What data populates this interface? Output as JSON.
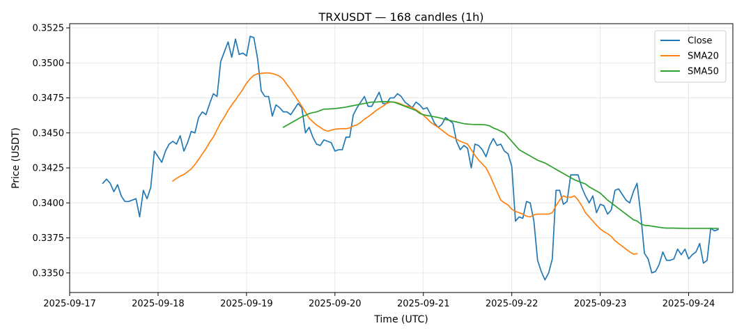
{
  "chart_data": {
    "type": "line",
    "title": "TRXUSDT — 168 candles (1h)",
    "xlabel": "Time (UTC)",
    "ylabel": "Price (USDT)",
    "x_range": [
      "2025-09-17T00:00",
      "2025-09-24T12:00"
    ],
    "x_start": "2025-09-17T09:00",
    "x_interval_hours": 1,
    "x_ticks": [
      "2025-09-17",
      "2025-09-18",
      "2025-09-19",
      "2025-09-20",
      "2025-09-21",
      "2025-09-22",
      "2025-09-23",
      "2025-09-24"
    ],
    "ylim": [
      0.3336,
      0.3528
    ],
    "y_ticks": [
      0.335,
      0.3375,
      0.34,
      0.3425,
      0.345,
      0.3475,
      0.35,
      0.3525
    ],
    "y_tick_labels": [
      "0.3350",
      "0.3375",
      "0.3400",
      "0.3425",
      "0.3450",
      "0.3475",
      "0.3500",
      "0.3525"
    ],
    "grid": true,
    "legend": "top-right",
    "series": [
      {
        "name": "Close",
        "color": "#1f77b4",
        "start_index": 0,
        "values": [
          0.3414,
          0.3417,
          0.3414,
          0.3408,
          0.3413,
          0.3405,
          0.3401,
          0.3401,
          0.3402,
          0.3403,
          0.339,
          0.3409,
          0.3403,
          0.3411,
          0.3437,
          0.3433,
          0.3429,
          0.3437,
          0.3442,
          0.3444,
          0.3442,
          0.3448,
          0.3437,
          0.3443,
          0.3451,
          0.345,
          0.3461,
          0.3465,
          0.3463,
          0.3471,
          0.3478,
          0.3476,
          0.3501,
          0.3508,
          0.3515,
          0.3504,
          0.3517,
          0.3506,
          0.3507,
          0.3505,
          0.3519,
          0.3518,
          0.3503,
          0.348,
          0.3476,
          0.3476,
          0.3462,
          0.347,
          0.3468,
          0.3465,
          0.3465,
          0.3463,
          0.3467,
          0.3471,
          0.3468,
          0.345,
          0.3454,
          0.3447,
          0.3442,
          0.3441,
          0.3445,
          0.3444,
          0.3443,
          0.3437,
          0.3438,
          0.3438,
          0.3447,
          0.3447,
          0.3463,
          0.3468,
          0.3472,
          0.3476,
          0.3469,
          0.3469,
          0.3474,
          0.3479,
          0.3471,
          0.3471,
          0.3475,
          0.3475,
          0.3478,
          0.3476,
          0.3472,
          0.347,
          0.3468,
          0.3472,
          0.347,
          0.3467,
          0.3468,
          0.3463,
          0.3457,
          0.3454,
          0.3456,
          0.3461,
          0.3459,
          0.3457,
          0.3444,
          0.3438,
          0.3441,
          0.3439,
          0.3425,
          0.3442,
          0.3441,
          0.3438,
          0.3433,
          0.3441,
          0.3446,
          0.3441,
          0.3442,
          0.3437,
          0.3435,
          0.3426,
          0.3387,
          0.339,
          0.3389,
          0.3401,
          0.34,
          0.3387,
          0.3359,
          0.3351,
          0.3345,
          0.335,
          0.336,
          0.3409,
          0.3409,
          0.3399,
          0.3401,
          0.342,
          0.342,
          0.342,
          0.3411,
          0.3405,
          0.34,
          0.3405,
          0.3393,
          0.3399,
          0.3398,
          0.3392,
          0.3395,
          0.3409,
          0.341,
          0.3406,
          0.3402,
          0.34,
          0.3408,
          0.3414,
          0.3392,
          0.3364,
          0.336,
          0.335,
          0.3351,
          0.3356,
          0.3365,
          0.3359,
          0.3359,
          0.336,
          0.3367,
          0.3363,
          0.3367,
          0.336,
          0.3363,
          0.3365,
          0.3371,
          0.3357,
          0.3359,
          0.3382,
          0.338,
          0.3381
        ]
      },
      {
        "name": "SMA20",
        "color": "#ff7f0e",
        "start_index": 19,
        "values": [
          0.34156,
          0.34175,
          0.34191,
          0.34203,
          0.34222,
          0.34243,
          0.34274,
          0.3431,
          0.3435,
          0.34388,
          0.34433,
          0.3447,
          0.34522,
          0.34573,
          0.34613,
          0.34661,
          0.347,
          0.34735,
          0.34773,
          0.34812,
          0.34855,
          0.34887,
          0.34911,
          0.34922,
          0.34925,
          0.34928,
          0.34928,
          0.34924,
          0.34916,
          0.34904,
          0.34882,
          0.34845,
          0.3481,
          0.3477,
          0.3473,
          0.3469,
          0.34648,
          0.34605,
          0.3458,
          0.34556,
          0.3454,
          0.34522,
          0.34512,
          0.3452,
          0.34526,
          0.34529,
          0.3453,
          0.3453,
          0.34535,
          0.3455,
          0.34557,
          0.34575,
          0.34598,
          0.34615,
          0.34635,
          0.34656,
          0.34675,
          0.3469,
          0.3471,
          0.3472,
          0.3472,
          0.34715,
          0.34705,
          0.34693,
          0.3469,
          0.3468,
          0.34665,
          0.34648,
          0.34626,
          0.34602,
          0.34575,
          0.34557,
          0.3454,
          0.3452,
          0.345,
          0.3448,
          0.3447,
          0.34455,
          0.3444,
          0.3443,
          0.3442,
          0.3438,
          0.3434,
          0.34305,
          0.34278,
          0.3425,
          0.342,
          0.3414,
          0.3408,
          0.3402,
          0.34,
          0.33985,
          0.33955,
          0.3394,
          0.3393,
          0.3392,
          0.33905,
          0.339,
          0.33915,
          0.3392,
          0.3392,
          0.3392,
          0.3392,
          0.3393,
          0.3398,
          0.3402,
          0.3405,
          0.3404,
          0.3404,
          0.3405,
          0.3402,
          0.3398,
          0.3393,
          0.339,
          0.3387,
          0.3384,
          0.33815,
          0.33795,
          0.3378,
          0.3376,
          0.3373,
          0.3371,
          0.3369,
          0.3367,
          0.3365,
          0.33634,
          0.33637
        ]
      },
      {
        "name": "SMA50",
        "color": "#2ca02c",
        "start_index": 49,
        "values": [
          0.3454,
          0.34555,
          0.3457,
          0.34585,
          0.346,
          0.34615,
          0.34625,
          0.34638,
          0.34645,
          0.3465,
          0.3466,
          0.3467,
          0.3467,
          0.34672,
          0.34674,
          0.34677,
          0.3468,
          0.34684,
          0.3469,
          0.34695,
          0.347,
          0.34705,
          0.3471,
          0.34715,
          0.3472,
          0.3472,
          0.34722,
          0.34723,
          0.34723,
          0.34722,
          0.3472,
          0.3471,
          0.347,
          0.3469,
          0.3468,
          0.3467,
          0.3466,
          0.3464,
          0.3463,
          0.34624,
          0.3462,
          0.34615,
          0.3461,
          0.34603,
          0.34596,
          0.3459,
          0.34584,
          0.34578,
          0.34572,
          0.34566,
          0.34563,
          0.34561,
          0.3456,
          0.3456,
          0.34559,
          0.34557,
          0.3455,
          0.34535,
          0.34525,
          0.34512,
          0.345,
          0.3447,
          0.3444,
          0.3441,
          0.3438,
          0.34365,
          0.3435,
          0.34335,
          0.3432,
          0.34305,
          0.34295,
          0.34285,
          0.3427,
          0.34255,
          0.3424,
          0.34225,
          0.3421,
          0.34195,
          0.3418,
          0.34165,
          0.34155,
          0.34145,
          0.34135,
          0.34115,
          0.341,
          0.34085,
          0.3407,
          0.34045,
          0.3402,
          0.34,
          0.3398,
          0.3396,
          0.3394,
          0.3392,
          0.339,
          0.3388,
          0.3387,
          0.3385,
          0.3384,
          0.33838,
          0.33834,
          0.3383,
          0.33826,
          0.33822,
          0.3382,
          0.3382,
          0.3382,
          0.33819,
          0.33819,
          0.33818,
          0.33818,
          0.33818,
          0.33818,
          0.33818,
          0.33818,
          0.33818,
          0.33818,
          0.33818,
          0.33818
        ]
      }
    ]
  }
}
